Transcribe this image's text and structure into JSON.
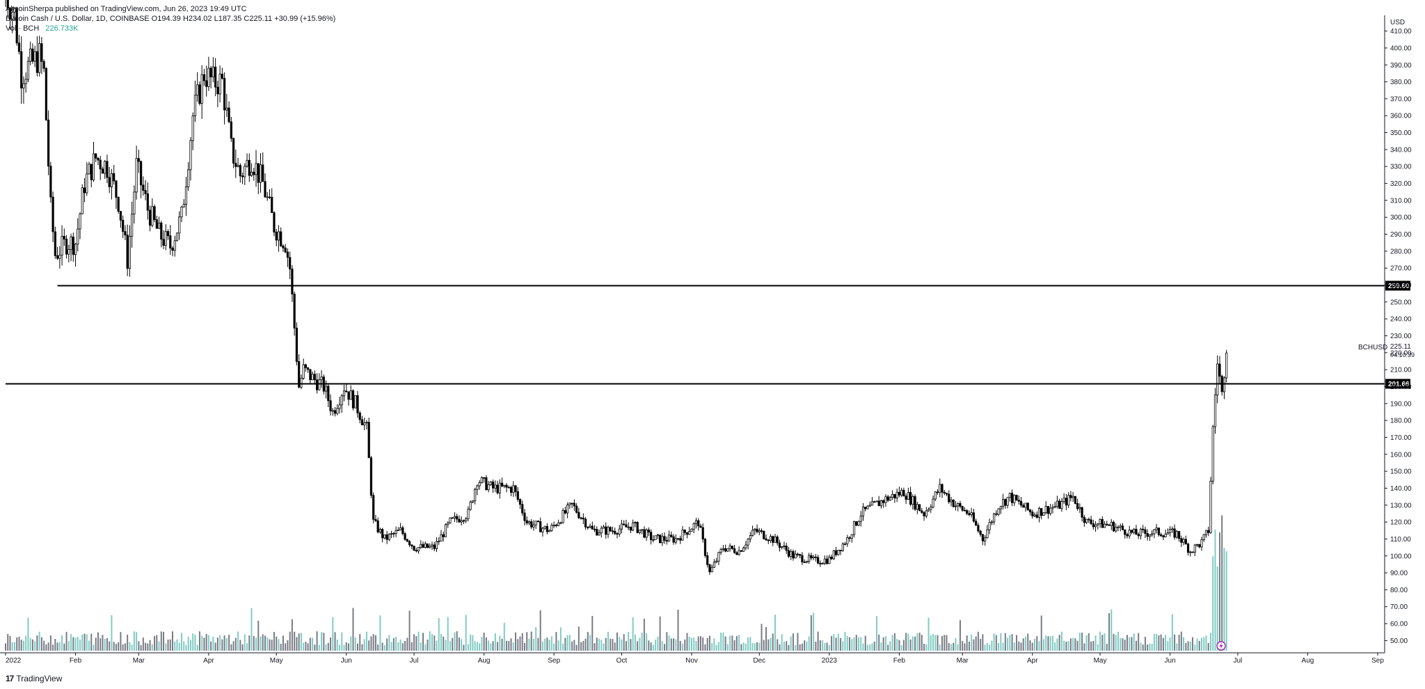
{
  "header": {
    "published": "AltcoinSherpa published on TradingView.com, Jun 26, 2023 19:49 UTC",
    "symbol_line": "Bitcoin Cash / U.S. Dollar, 1D, COINBASE  O194.39  H234.02  L187.35  C225.11  +30.99 (+15.96%)",
    "vol_label": "Vol · BCH",
    "vol_value": "226.733K"
  },
  "footer": {
    "logo_mark": "17",
    "brand": "TradingView"
  },
  "colors": {
    "candle": "#000000",
    "volume_up": "#80cbc4",
    "volume_down": "#787b86",
    "line": "#000000",
    "axis": "#131722",
    "event_marker": "#9c27b0"
  },
  "chart_data": {
    "type": "candlestick",
    "symbol": "BCHUSD",
    "currency": "USD",
    "current_price": "225.11",
    "countdown": "04:10:39",
    "ylim": [
      44,
      416
    ],
    "y_ticks": [
      50,
      60,
      70,
      80,
      90,
      100,
      110,
      120,
      130,
      140,
      150,
      160,
      170,
      180,
      190,
      200,
      210,
      220,
      230,
      240,
      250,
      260,
      270,
      280,
      290,
      300,
      310,
      320,
      330,
      340,
      350,
      360,
      370,
      380,
      390,
      400,
      410
    ],
    "x_ticks": [
      "2022",
      "Feb",
      "Mar",
      "Apr",
      "May",
      "Jun",
      "Jul",
      "Aug",
      "Sep",
      "Oct",
      "Nov",
      "Dec",
      "2023",
      "Feb",
      "Mar",
      "Apr",
      "May",
      "Jun",
      "Jul",
      "Aug",
      "Sep"
    ],
    "x_tick_dates": [
      "2022-01-01",
      "2022-02-01",
      "2022-03-01",
      "2022-04-01",
      "2022-05-01",
      "2022-06-01",
      "2022-07-01",
      "2022-08-01",
      "2022-09-01",
      "2022-10-01",
      "2022-11-01",
      "2022-12-01",
      "2023-01-01",
      "2023-02-01",
      "2023-03-01",
      "2023-04-01",
      "2023-05-01",
      "2023-06-01",
      "2023-07-01",
      "2023-08-01",
      "2023-09-01"
    ],
    "x_range": [
      "2022-01-01",
      "2023-09-01"
    ],
    "horizontal_lines": [
      {
        "label": "259.60",
        "value": 259.6,
        "start": "2022-01-24"
      },
      {
        "label": "201.66",
        "value": 201.66,
        "start": "2022-01-01"
      }
    ],
    "series_closes": [
      {
        "date": "2022-01-01",
        "close": 432
      },
      {
        "date": "2022-01-05",
        "close": 420
      },
      {
        "date": "2022-01-08",
        "close": 385
      },
      {
        "date": "2022-01-12",
        "close": 390
      },
      {
        "date": "2022-01-16",
        "close": 395
      },
      {
        "date": "2022-01-18",
        "close": 385
      },
      {
        "date": "2022-01-21",
        "close": 305
      },
      {
        "date": "2022-01-23",
        "close": 278
      },
      {
        "date": "2022-01-28",
        "close": 285
      },
      {
        "date": "2022-02-01",
        "close": 285
      },
      {
        "date": "2022-02-05",
        "close": 320
      },
      {
        "date": "2022-02-10",
        "close": 335
      },
      {
        "date": "2022-02-15",
        "close": 330
      },
      {
        "date": "2022-02-20",
        "close": 310
      },
      {
        "date": "2022-02-24",
        "close": 275
      },
      {
        "date": "2022-02-28",
        "close": 330
      },
      {
        "date": "2022-03-05",
        "close": 305
      },
      {
        "date": "2022-03-10",
        "close": 290
      },
      {
        "date": "2022-03-15",
        "close": 283
      },
      {
        "date": "2022-03-20",
        "close": 300
      },
      {
        "date": "2022-03-25",
        "close": 360
      },
      {
        "date": "2022-03-30",
        "close": 385
      },
      {
        "date": "2022-04-03",
        "close": 380
      },
      {
        "date": "2022-04-07",
        "close": 380
      },
      {
        "date": "2022-04-11",
        "close": 340
      },
      {
        "date": "2022-04-15",
        "close": 325
      },
      {
        "date": "2022-04-20",
        "close": 335
      },
      {
        "date": "2022-04-25",
        "close": 320
      },
      {
        "date": "2022-04-30",
        "close": 295
      },
      {
        "date": "2022-05-05",
        "close": 285
      },
      {
        "date": "2022-05-07",
        "close": 270
      },
      {
        "date": "2022-05-09",
        "close": 235
      },
      {
        "date": "2022-05-11",
        "close": 200
      },
      {
        "date": "2022-05-13",
        "close": 210
      },
      {
        "date": "2022-05-17",
        "close": 205
      },
      {
        "date": "2022-05-22",
        "close": 200
      },
      {
        "date": "2022-05-26",
        "close": 185
      },
      {
        "date": "2022-05-31",
        "close": 200
      },
      {
        "date": "2022-06-05",
        "close": 190
      },
      {
        "date": "2022-06-10",
        "close": 175
      },
      {
        "date": "2022-06-13",
        "close": 120
      },
      {
        "date": "2022-06-18",
        "close": 110
      },
      {
        "date": "2022-06-25",
        "close": 115
      },
      {
        "date": "2022-07-01",
        "close": 105
      },
      {
        "date": "2022-07-10",
        "close": 105
      },
      {
        "date": "2022-07-17",
        "close": 120
      },
      {
        "date": "2022-07-25",
        "close": 125
      },
      {
        "date": "2022-07-29",
        "close": 145
      },
      {
        "date": "2022-08-05",
        "close": 140
      },
      {
        "date": "2022-08-14",
        "close": 140
      },
      {
        "date": "2022-08-20",
        "close": 120
      },
      {
        "date": "2022-08-30",
        "close": 115
      },
      {
        "date": "2022-09-09",
        "close": 130
      },
      {
        "date": "2022-09-18",
        "close": 115
      },
      {
        "date": "2022-09-27",
        "close": 115
      },
      {
        "date": "2022-10-06",
        "close": 118
      },
      {
        "date": "2022-10-15",
        "close": 110
      },
      {
        "date": "2022-10-25",
        "close": 110
      },
      {
        "date": "2022-11-04",
        "close": 120
      },
      {
        "date": "2022-11-09",
        "close": 90
      },
      {
        "date": "2022-11-15",
        "close": 105
      },
      {
        "date": "2022-11-22",
        "close": 103
      },
      {
        "date": "2022-11-29",
        "close": 115
      },
      {
        "date": "2022-12-07",
        "close": 110
      },
      {
        "date": "2022-12-16",
        "close": 100
      },
      {
        "date": "2022-12-26",
        "close": 97
      },
      {
        "date": "2023-01-01",
        "close": 98
      },
      {
        "date": "2023-01-09",
        "close": 110
      },
      {
        "date": "2023-01-15",
        "close": 125
      },
      {
        "date": "2023-01-25",
        "close": 133
      },
      {
        "date": "2023-02-03",
        "close": 138
      },
      {
        "date": "2023-02-12",
        "close": 125
      },
      {
        "date": "2023-02-19",
        "close": 140
      },
      {
        "date": "2023-02-26",
        "close": 130
      },
      {
        "date": "2023-03-04",
        "close": 125
      },
      {
        "date": "2023-03-10",
        "close": 110
      },
      {
        "date": "2023-03-17",
        "close": 130
      },
      {
        "date": "2023-03-22",
        "close": 135
      },
      {
        "date": "2023-04-01",
        "close": 125
      },
      {
        "date": "2023-04-13",
        "close": 130
      },
      {
        "date": "2023-04-19",
        "close": 135
      },
      {
        "date": "2023-04-25",
        "close": 120
      },
      {
        "date": "2023-05-06",
        "close": 118
      },
      {
        "date": "2023-05-16",
        "close": 113
      },
      {
        "date": "2023-05-26",
        "close": 114
      },
      {
        "date": "2023-06-04",
        "close": 113
      },
      {
        "date": "2023-06-10",
        "close": 103
      },
      {
        "date": "2023-06-15",
        "close": 108
      },
      {
        "date": "2023-06-18",
        "close": 115
      },
      {
        "date": "2023-06-20",
        "close": 175
      },
      {
        "date": "2023-06-22",
        "close": 215
      },
      {
        "date": "2023-06-24",
        "close": 195
      },
      {
        "date": "2023-06-26",
        "close": 225
      }
    ]
  }
}
